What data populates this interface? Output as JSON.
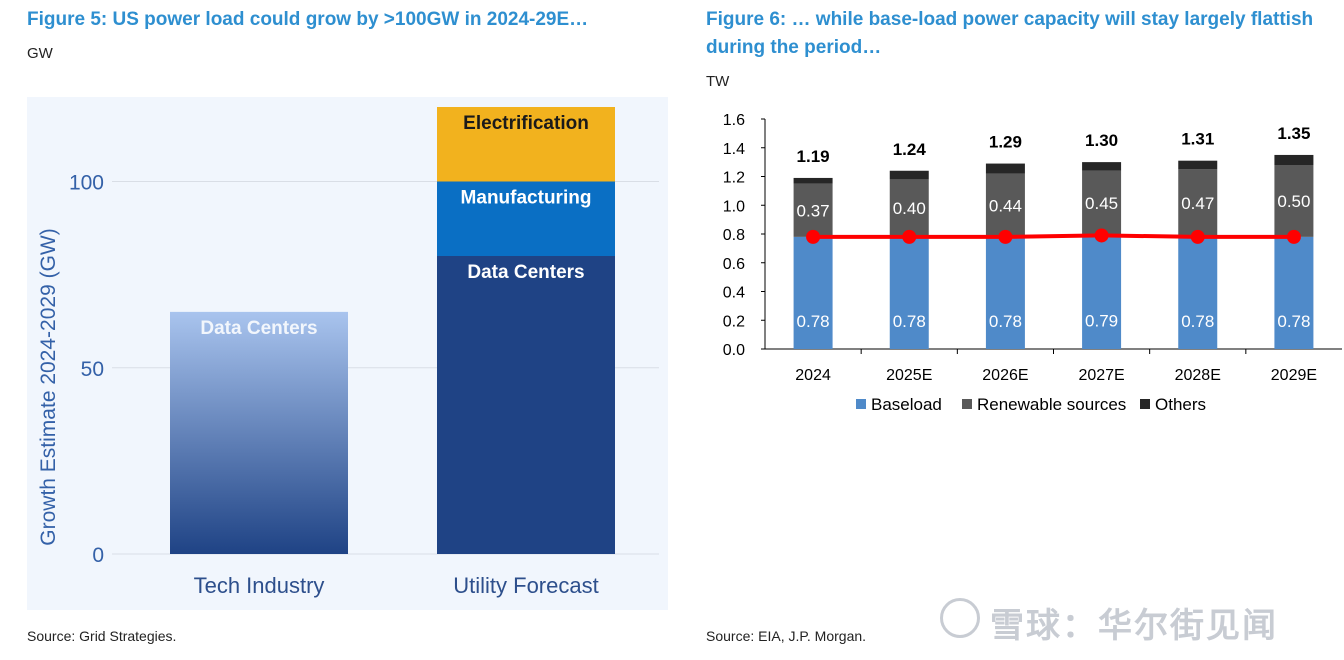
{
  "fig5": {
    "title": "Figure 5: US power load could grow by >100GW in 2024-29E…",
    "unit": "GW",
    "source": "Source: Grid Strategies."
  },
  "fig6": {
    "title_line1": "Figure 6: … while base-load power capacity will stay largely flattish",
    "title_line2": "during the period…",
    "unit": "TW",
    "source": "Source: EIA, J.P. Morgan."
  },
  "watermark": {
    "text": "雪球：华尔街见闻"
  },
  "chart_data": [
    {
      "type": "bar",
      "stacked": true,
      "categories": [
        "Tech Industry",
        "Utility Forecast"
      ],
      "ylabel": "Growth Estimate 2024-2029 (GW)",
      "ylim": [
        0,
        120
      ],
      "yticks": [
        0,
        50,
        100
      ],
      "grid": true,
      "series": [
        {
          "name": "Data Centers",
          "values": [
            65,
            80
          ],
          "colors": [
            "#a9c4ee",
            "#1f4385"
          ]
        },
        {
          "name": "Manufacturing",
          "values": [
            0,
            20
          ],
          "color": "#0a6fc4"
        },
        {
          "name": "Electrification",
          "values": [
            0,
            20
          ],
          "color": "#f2b21e"
        }
      ]
    },
    {
      "type": "bar",
      "stacked": true,
      "categories": [
        "2024",
        "2025E",
        "2026E",
        "2027E",
        "2028E",
        "2029E"
      ],
      "ylim": [
        0,
        1.6
      ],
      "yticks": [
        "0.0",
        "0.2",
        "0.4",
        "0.6",
        "0.8",
        "1.0",
        "1.2",
        "1.4",
        "1.6"
      ],
      "legend": "bottom",
      "series": [
        {
          "name": "Baseload",
          "values": [
            0.78,
            0.78,
            0.78,
            0.79,
            0.78,
            0.78
          ],
          "labels": [
            "0.78",
            "0.78",
            "0.78",
            "0.79",
            "0.78",
            "0.78"
          ],
          "color": "#4f8ac9"
        },
        {
          "name": "Renewable sources",
          "values": [
            0.37,
            0.4,
            0.44,
            0.45,
            0.47,
            0.5
          ],
          "labels": [
            "0.37",
            "0.40",
            "0.44",
            "0.45",
            "0.47",
            "0.50"
          ],
          "color": "#595959"
        },
        {
          "name": "Others",
          "values": [
            0.04,
            0.06,
            0.07,
            0.06,
            0.06,
            0.07
          ],
          "color": "#262626"
        }
      ],
      "totals": [
        "1.19",
        "1.24",
        "1.29",
        "1.30",
        "1.31",
        "1.35"
      ],
      "line": {
        "values": [
          0.78,
          0.78,
          0.78,
          0.79,
          0.78,
          0.78
        ],
        "color": "#ff0000"
      }
    }
  ]
}
